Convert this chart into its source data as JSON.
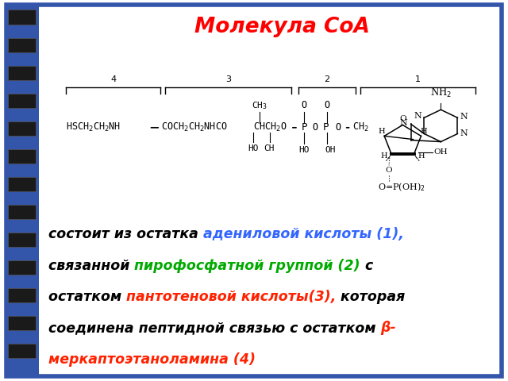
{
  "title": "Молекула СоА",
  "title_color": "#FF0000",
  "bg_color": "#FFFFFF",
  "border_color": "#3355AA",
  "spine_rect_color": "#1a1a1a",
  "text_black": "#000000",
  "text_blue": "#3366FF",
  "text_green": "#00AA00",
  "text_red": "#FF2200",
  "description_lines": [
    [
      {
        "text": "состоит из остатка ",
        "color": "#000000"
      },
      {
        "text": "адениловой кислоты (1),",
        "color": "#3366FF"
      }
    ],
    [
      {
        "text": "связанной ",
        "color": "#000000"
      },
      {
        "text": "пирофосфатной группой (2)",
        "color": "#00AA00"
      },
      {
        "text": " с",
        "color": "#000000"
      }
    ],
    [
      {
        "text": "остатком ",
        "color": "#000000"
      },
      {
        "text": "пантотеновой кислоты(3),",
        "color": "#FF2200"
      },
      {
        "text": " которая",
        "color": "#000000"
      }
    ],
    [
      {
        "text": "соединена пептидной связью с остатком ",
        "color": "#000000"
      },
      {
        "text": "β-",
        "color": "#FF2200"
      }
    ],
    [
      {
        "text": "меркаптоэтаноламина (4)",
        "color": "#FF2200"
      }
    ]
  ]
}
